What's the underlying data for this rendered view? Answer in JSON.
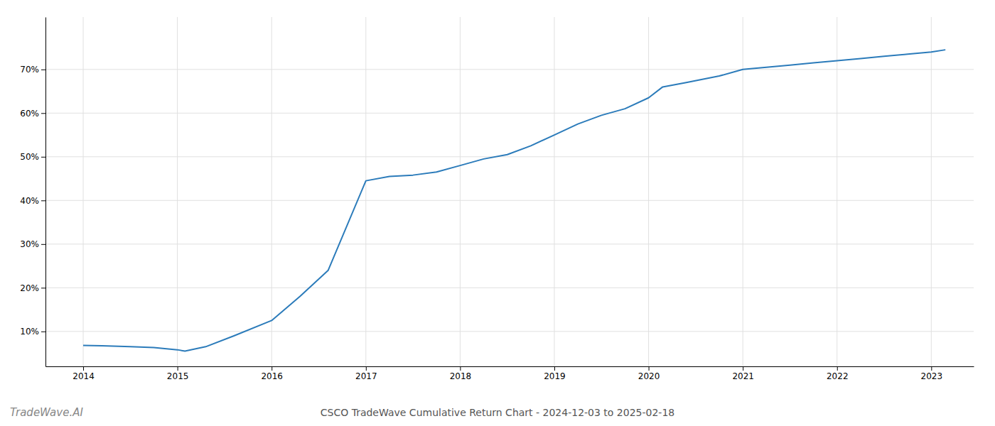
{
  "chart_data": {
    "type": "line",
    "title": "CSCO TradeWave Cumulative Return Chart - 2024-12-03 to 2025-02-18",
    "annotations": [
      "TradeWave.AI"
    ],
    "x": [
      2014.0,
      2014.2,
      2014.5,
      2014.75,
      2015.0,
      2015.08,
      2015.3,
      2015.6,
      2016.0,
      2016.3,
      2016.6,
      2017.0,
      2017.25,
      2017.5,
      2017.75,
      2018.0,
      2018.25,
      2018.5,
      2018.75,
      2019.0,
      2019.25,
      2019.5,
      2019.75,
      2020.0,
      2020.15,
      2020.4,
      2020.75,
      2021.0,
      2021.25,
      2021.5,
      2021.75,
      2022.0,
      2022.25,
      2022.5,
      2022.75,
      2023.0,
      2023.15
    ],
    "values": [
      6.8,
      6.7,
      6.5,
      6.3,
      5.8,
      5.5,
      6.5,
      9.0,
      12.5,
      18.0,
      24.0,
      44.5,
      45.5,
      45.8,
      46.5,
      48.0,
      49.5,
      50.5,
      52.5,
      55.0,
      57.5,
      59.5,
      61.0,
      63.5,
      66.0,
      67.0,
      68.5,
      70.0,
      70.5,
      71.0,
      71.5,
      72.0,
      72.5,
      73.0,
      73.5,
      74.0,
      74.5
    ],
    "color": "#2b7bba",
    "xlim": [
      2013.6,
      2023.45
    ],
    "xticks": [
      2014,
      2015,
      2016,
      2017,
      2018,
      2019,
      2020,
      2021,
      2022,
      2023
    ],
    "ylim": [
      2,
      82
    ],
    "yticks": [
      {
        "value": 10,
        "label": "10%"
      },
      {
        "value": 20,
        "label": "20%"
      },
      {
        "value": 30,
        "label": "30%"
      },
      {
        "value": 40,
        "label": "40%"
      },
      {
        "value": 50,
        "label": "50%"
      },
      {
        "value": 60,
        "label": "60%"
      },
      {
        "value": 70,
        "label": "70%"
      }
    ],
    "grid": true
  }
}
